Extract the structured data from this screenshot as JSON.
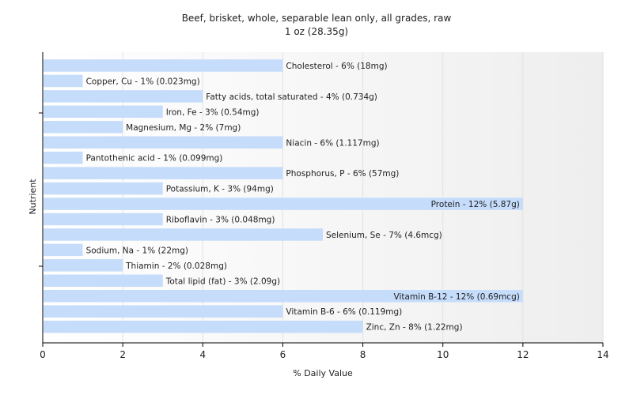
{
  "chart_data": {
    "type": "bar",
    "orientation": "horizontal",
    "title": "Beef, brisket, whole, separable lean only, all grades, raw",
    "subtitle": "1 oz (28.35g)",
    "xlabel": "% Daily Value",
    "ylabel": "Nutrient",
    "xlim": [
      0,
      14
    ],
    "xticks": [
      "0",
      "2",
      "4",
      "6",
      "8",
      "10",
      "12",
      "14"
    ],
    "grid": true,
    "bar_color": "#c5dcfb",
    "categories": [
      "Cholesterol",
      "Copper, Cu",
      "Fatty acids, total saturated",
      "Iron, Fe",
      "Magnesium, Mg",
      "Niacin",
      "Pantothenic acid",
      "Phosphorus, P",
      "Potassium, K",
      "Protein",
      "Riboflavin",
      "Selenium, Se",
      "Sodium, Na",
      "Thiamin",
      "Total lipid (fat)",
      "Vitamin B-12",
      "Vitamin B-6",
      "Zinc, Zn"
    ],
    "values": [
      6,
      1,
      4,
      3,
      2,
      6,
      1,
      6,
      3,
      12,
      3,
      7,
      1,
      2,
      3,
      12,
      6,
      8
    ],
    "labels": [
      "Cholesterol - 6% (18mg)",
      "Copper, Cu - 1% (0.023mg)",
      "Fatty acids, total saturated - 4% (0.734g)",
      "Iron, Fe - 3% (0.54mg)",
      "Magnesium, Mg - 2% (7mg)",
      "Niacin - 6% (1.117mg)",
      "Pantothenic acid - 1% (0.099mg)",
      "Phosphorus, P - 6% (57mg)",
      "Potassium, K - 3% (94mg)",
      "Protein - 12% (5.87g)",
      "Riboflavin - 3% (0.048mg)",
      "Selenium, Se - 7% (4.6mcg)",
      "Sodium, Na - 1% (22mg)",
      "Thiamin - 2% (0.028mg)",
      "Total lipid (fat) - 3% (2.09g)",
      "Vitamin B-12 - 12% (0.69mcg)",
      "Vitamin B-6 - 6% (0.119mg)",
      "Zinc, Zn - 8% (1.22mg)"
    ]
  }
}
